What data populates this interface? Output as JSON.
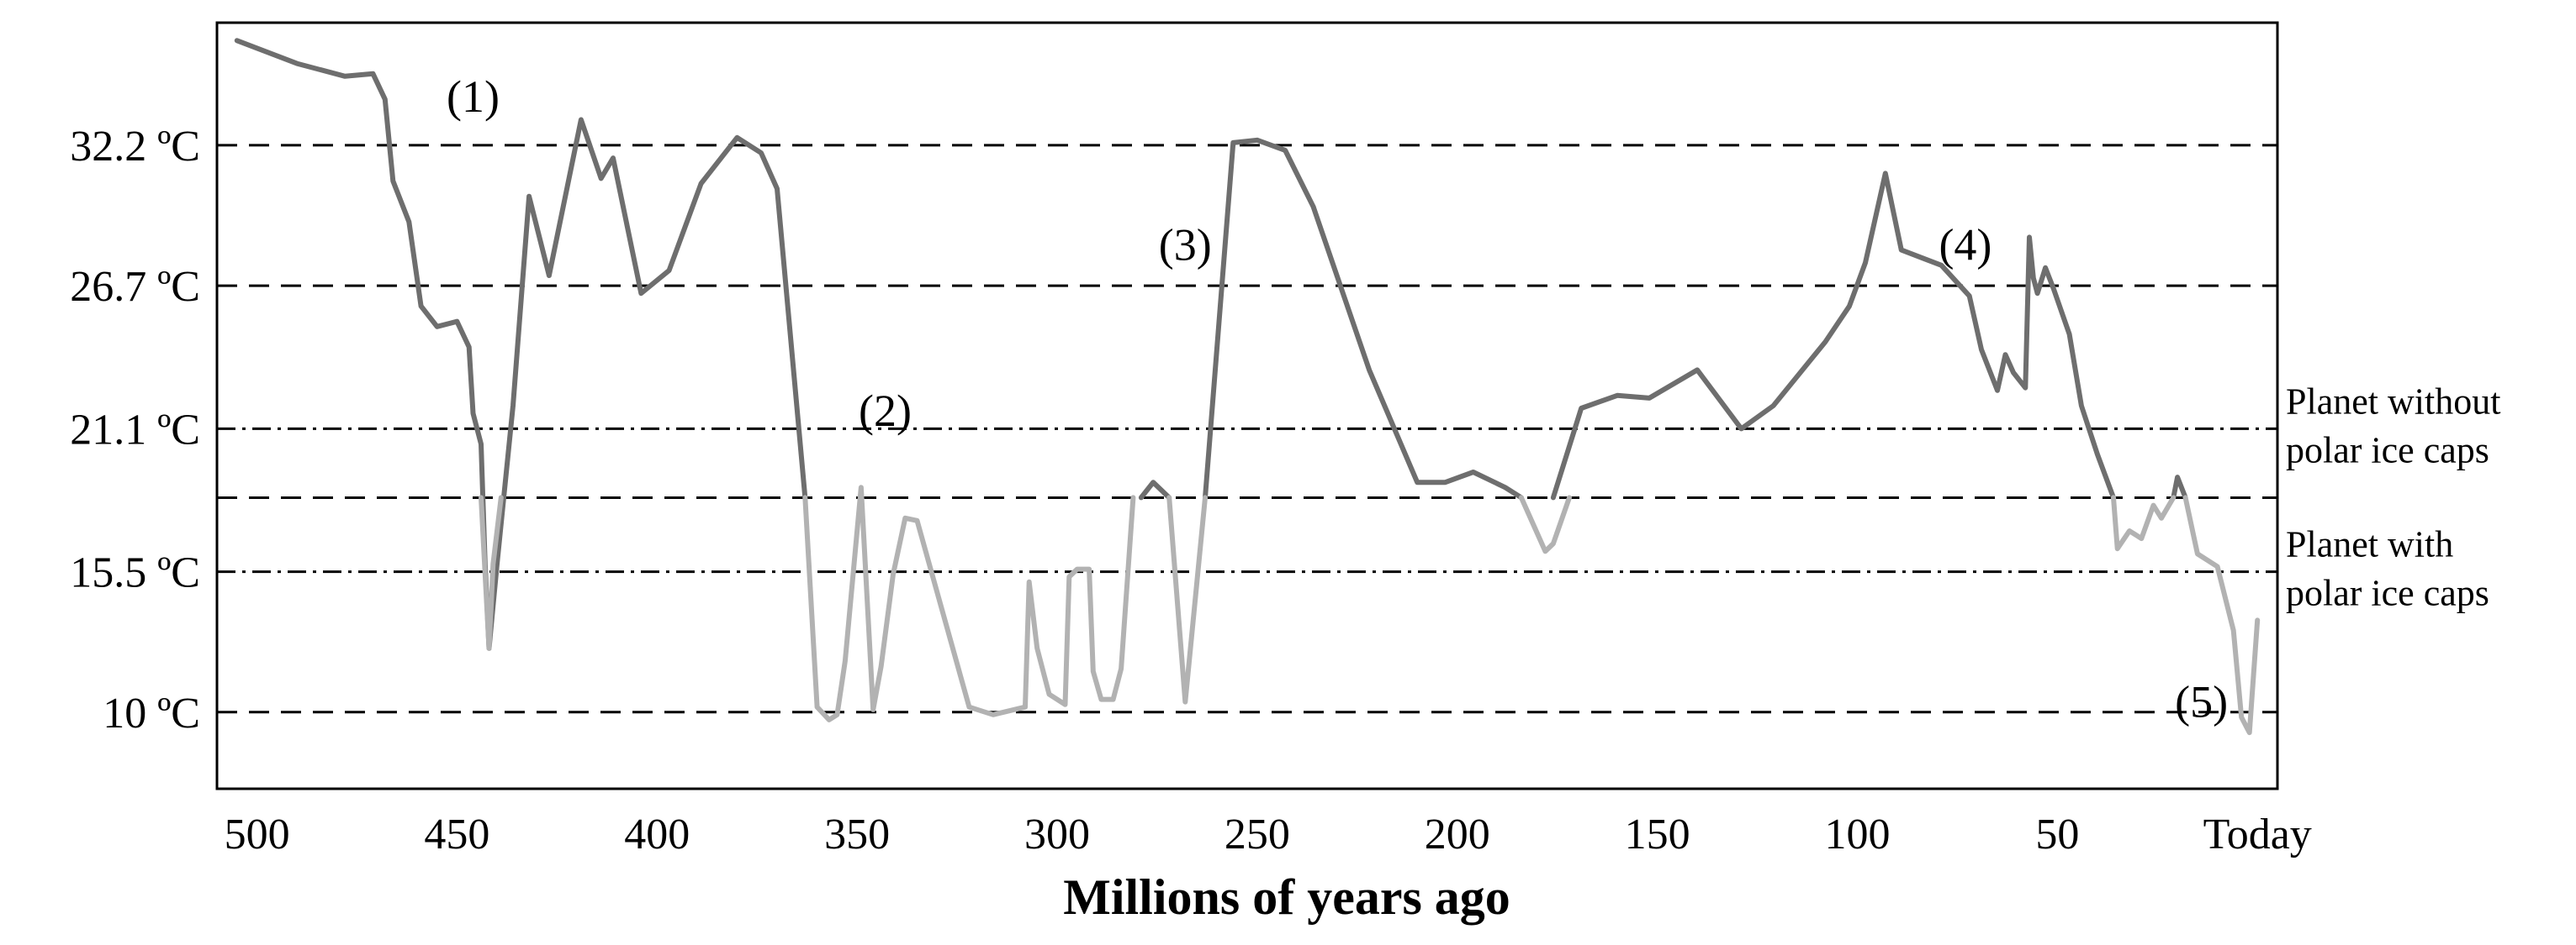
{
  "chart_data": {
    "type": "line",
    "title": "",
    "xlabel": "Millions of years ago",
    "ylabel": "",
    "x_reversed": true,
    "xlim": [
      510,
      -5
    ],
    "ylim": [
      7,
      37
    ],
    "x_ticks": [
      {
        "value": 500,
        "label": "500"
      },
      {
        "value": 450,
        "label": "450"
      },
      {
        "value": 400,
        "label": "400"
      },
      {
        "value": 350,
        "label": "350"
      },
      {
        "value": 300,
        "label": "300"
      },
      {
        "value": 250,
        "label": "250"
      },
      {
        "value": 200,
        "label": "200"
      },
      {
        "value": 150,
        "label": "150"
      },
      {
        "value": 100,
        "label": "100"
      },
      {
        "value": 50,
        "label": "50"
      },
      {
        "value": 0,
        "label": "Today"
      }
    ],
    "y_ticks": [
      {
        "value": 32.2,
        "label": "32.2 ºC"
      },
      {
        "value": 26.7,
        "label": "26.7 ºC"
      },
      {
        "value": 21.1,
        "label": "21.1 ºC"
      },
      {
        "value": 15.5,
        "label": "15.5 ºC"
      },
      {
        "value": 10,
        "label": "10 ºC"
      }
    ],
    "dashed_lines": [
      32.2,
      26.7,
      18.4,
      10
    ],
    "reference_lines": [
      {
        "value": 21.1,
        "lines": [
          "Planet without",
          "polar ice caps"
        ]
      },
      {
        "value": 15.5,
        "lines": [
          "Planet with",
          "polar ice caps"
        ]
      }
    ],
    "annotations": [
      {
        "label": "(1)",
        "x": 446,
        "y": 34.1
      },
      {
        "label": "(2)",
        "x": 343,
        "y": 21.8
      },
      {
        "label": "(3)",
        "x": 268,
        "y": 28.3
      },
      {
        "label": "(4)",
        "x": 73,
        "y": 28.3
      },
      {
        "label": "(5)",
        "x": 14,
        "y": 10.4
      }
    ],
    "series": [
      {
        "color": "#6e6e6e",
        "segments": [
          [
            [
              505,
              36.3
            ],
            [
              490,
              35.4
            ],
            [
              478,
              34.9
            ],
            [
              471,
              35.0
            ],
            [
              468,
              34.0
            ],
            [
              466,
              30.8
            ],
            [
              462,
              29.2
            ],
            [
              459,
              25.9
            ],
            [
              455,
              25.1
            ],
            [
              450,
              25.3
            ],
            [
              447,
              24.3
            ],
            [
              446,
              21.7
            ],
            [
              444,
              20.5
            ],
            [
              443,
              15.9
            ],
            [
              442,
              12.5
            ],
            [
              440,
              15.8
            ],
            [
              436,
              22.0
            ],
            [
              432,
              30.2
            ],
            [
              427,
              27.1
            ],
            [
              419,
              33.2
            ],
            [
              414,
              30.9
            ],
            [
              411,
              31.7
            ],
            [
              404,
              26.4
            ],
            [
              397,
              27.3
            ],
            [
              389,
              30.7
            ],
            [
              380,
              32.5
            ],
            [
              374,
              31.9
            ],
            [
              370,
              30.5
            ],
            [
              363,
              18.4
            ]
          ],
          [
            [
              279,
              18.4
            ],
            [
              276,
              19.0
            ],
            [
              272,
              18.4
            ]
          ],
          [
            [
              263,
              18.4
            ],
            [
              256,
              32.3
            ],
            [
              250,
              32.4
            ],
            [
              243,
              32.0
            ],
            [
              236,
              29.8
            ],
            [
              222,
              23.4
            ],
            [
              210,
              19.0
            ],
            [
              203,
              19.0
            ],
            [
              196,
              19.4
            ],
            [
              188,
              18.8
            ],
            [
              184,
              18.4
            ]
          ],
          [
            [
              176,
              18.4
            ],
            [
              169,
              21.9
            ],
            [
              160,
              22.4
            ],
            [
              152,
              22.3
            ],
            [
              140,
              23.4
            ],
            [
              129,
              21.1
            ],
            [
              121,
              22.0
            ],
            [
              108,
              24.5
            ],
            [
              102,
              25.9
            ],
            [
              98,
              27.6
            ],
            [
              93,
              31.1
            ],
            [
              89,
              28.1
            ],
            [
              79,
              27.5
            ],
            [
              72,
              26.3
            ],
            [
              69,
              24.2
            ],
            [
              65,
              22.6
            ],
            [
              63,
              24.0
            ],
            [
              61,
              23.3
            ],
            [
              58,
              22.7
            ],
            [
              57,
              28.6
            ],
            [
              56,
              27.0
            ],
            [
              55,
              26.4
            ],
            [
              53,
              27.4
            ],
            [
              51,
              26.6
            ],
            [
              47,
              24.8
            ],
            [
              44,
              22.0
            ],
            [
              40,
              20.1
            ],
            [
              36,
              18.4
            ]
          ],
          [
            [
              21,
              18.4
            ],
            [
              20,
              19.2
            ],
            [
              18,
              18.4
            ]
          ]
        ]
      },
      {
        "color": "#b2b2b2",
        "segments": [
          [
            [
              444,
              18.4
            ],
            [
              442,
              12.5
            ],
            [
              441,
              15.8
            ],
            [
              439,
              18.4
            ]
          ],
          [
            [
              363,
              18.4
            ],
            [
              360,
              10.2
            ],
            [
              357,
              9.7
            ],
            [
              355,
              9.9
            ],
            [
              353,
              12.0
            ],
            [
              349,
              18.8
            ],
            [
              346,
              10.1
            ],
            [
              344,
              11.8
            ],
            [
              341,
              15.4
            ],
            [
              338,
              17.6
            ],
            [
              335,
              17.5
            ],
            [
              322,
              10.2
            ],
            [
              316,
              9.9
            ],
            [
              308,
              10.2
            ],
            [
              307,
              15.1
            ],
            [
              305,
              12.5
            ],
            [
              302,
              10.7
            ],
            [
              298,
              10.3
            ],
            [
              297,
              15.3
            ],
            [
              295,
              15.6
            ],
            [
              292,
              15.6
            ],
            [
              291,
              11.6
            ],
            [
              289,
              10.5
            ],
            [
              286,
              10.5
            ],
            [
              284,
              11.7
            ],
            [
              281,
              18.4
            ]
          ],
          [
            [
              272,
              18.4
            ],
            [
              268,
              10.4
            ],
            [
              263,
              18.4
            ]
          ],
          [
            [
              184,
              18.4
            ],
            [
              178,
              16.3
            ],
            [
              176,
              16.6
            ],
            [
              172,
              18.4
            ]
          ],
          [
            [
              36,
              18.4
            ],
            [
              35,
              16.4
            ],
            [
              32,
              17.1
            ],
            [
              29,
              16.8
            ],
            [
              26,
              18.1
            ],
            [
              24,
              17.6
            ],
            [
              21,
              18.4
            ]
          ],
          [
            [
              18,
              18.4
            ],
            [
              15,
              16.2
            ],
            [
              10,
              15.7
            ],
            [
              6,
              13.2
            ],
            [
              4,
              9.8
            ],
            [
              2,
              9.2
            ],
            [
              0,
              13.6
            ]
          ]
        ]
      }
    ]
  }
}
